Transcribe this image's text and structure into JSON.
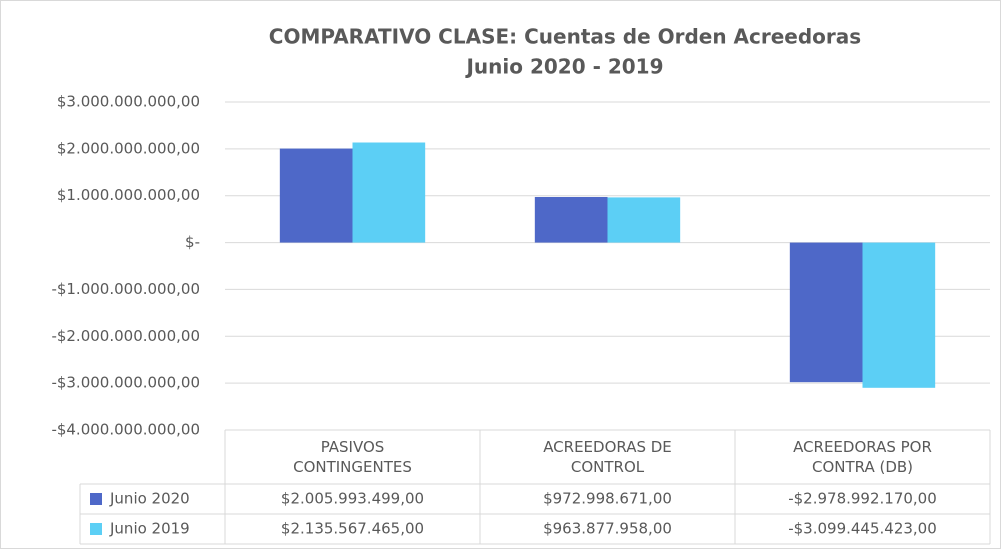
{
  "chart_data": {
    "type": "bar",
    "title": "COMPARATIVO CLASE: Cuentas de Orden Acreedoras",
    "subtitle": "Junio 2020 - 2019",
    "categories": [
      "PASIVOS CONTINGENTES",
      "ACREEDORAS DE CONTROL",
      "ACREEDORAS POR CONTRA (DB)"
    ],
    "series": [
      {
        "name": "Junio 2020",
        "color": "#4e68c8",
        "values": [
          2005993499,
          972998671,
          -2978992170
        ],
        "value_labels": [
          "$2.005.993.499,00",
          "$972.998.671,00",
          "-$2.978.992.170,00"
        ]
      },
      {
        "name": "Junio 2019",
        "color": "#5ccff5",
        "values": [
          2135567465,
          963877958,
          -3099445423
        ],
        "value_labels": [
          "$2.135.567.465,00",
          "$963.877.958,00",
          "-$3.099.445.423,00"
        ]
      }
    ],
    "ylim": [
      -4000000000,
      3000000000
    ],
    "yticks": [
      {
        "value": 3000000000,
        "label": "$3.000.000.000,00"
      },
      {
        "value": 2000000000,
        "label": "$2.000.000.000,00"
      },
      {
        "value": 1000000000,
        "label": "$1.000.000.000,00"
      },
      {
        "value": 0,
        "label": "$-"
      },
      {
        "value": -1000000000,
        "label": "-$1.000.000.000,00"
      },
      {
        "value": -2000000000,
        "label": "-$2.000.000.000,00"
      },
      {
        "value": -3000000000,
        "label": "-$3.000.000.000,00"
      },
      {
        "value": -4000000000,
        "label": "-$4.000.000.000,00"
      }
    ],
    "grid": true,
    "data_table": true
  }
}
